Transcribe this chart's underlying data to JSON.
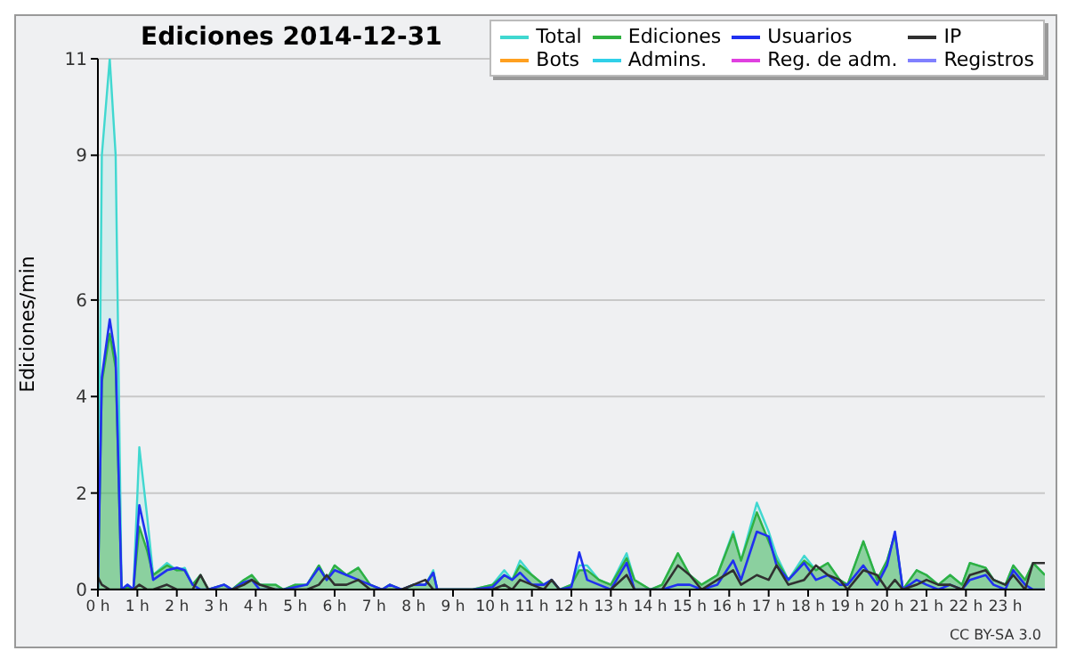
{
  "chart_data": {
    "type": "area",
    "title": "Ediciones  2014-12-31",
    "ylabel": "Ediciones/min",
    "annotations": [
      "CC BY-SA 3.0"
    ],
    "legend": "top right",
    "grid": "y",
    "xlim": [
      0,
      24
    ],
    "xticks": [
      {
        "value": 0,
        "label": "0 h"
      },
      {
        "value": 1,
        "label": "1 h"
      },
      {
        "value": 2,
        "label": "2 h"
      },
      {
        "value": 3,
        "label": "3 h"
      },
      {
        "value": 4,
        "label": "4 h"
      },
      {
        "value": 5,
        "label": "5 h"
      },
      {
        "value": 6,
        "label": "6 h"
      },
      {
        "value": 7,
        "label": "7 h"
      },
      {
        "value": 8,
        "label": "8 h"
      },
      {
        "value": 9,
        "label": "9 h"
      },
      {
        "value": 10,
        "label": "10 h"
      },
      {
        "value": 11,
        "label": "11 h"
      },
      {
        "value": 12,
        "label": "12 h"
      },
      {
        "value": 13,
        "label": "13 h"
      },
      {
        "value": 14,
        "label": "14 h"
      },
      {
        "value": 15,
        "label": "15 h"
      },
      {
        "value": 16,
        "label": "16 h"
      },
      {
        "value": 17,
        "label": "17 h"
      },
      {
        "value": 18,
        "label": "18 h"
      },
      {
        "value": 19,
        "label": "19 h"
      },
      {
        "value": 20,
        "label": "20 h"
      },
      {
        "value": 21,
        "label": "21 h"
      },
      {
        "value": 22,
        "label": "22 h"
      },
      {
        "value": 23,
        "label": "23 h"
      }
    ],
    "ylim": [
      0,
      11
    ],
    "yticks": [
      0,
      2,
      4,
      6,
      9,
      11
    ],
    "x": [
      0,
      0.1,
      0.3,
      0.45,
      0.6,
      0.75,
      0.9,
      1.05,
      1.25,
      1.4,
      1.75,
      2.0,
      2.2,
      2.4,
      2.6,
      2.8,
      3.2,
      3.4,
      3.7,
      3.9,
      4.1,
      4.5,
      4.7,
      5.0,
      5.3,
      5.6,
      5.8,
      6.0,
      6.3,
      6.6,
      6.9,
      7.2,
      7.4,
      7.7,
      8.0,
      8.3,
      8.5,
      8.6,
      9.5,
      10.0,
      10.3,
      10.5,
      10.7,
      11.0,
      11.3,
      11.5,
      11.7,
      12.0,
      12.2,
      12.4,
      12.7,
      13.0,
      13.4,
      13.6,
      14.0,
      14.3,
      14.7,
      15.0,
      15.3,
      15.7,
      16.1,
      16.3,
      16.7,
      17.0,
      17.2,
      17.5,
      17.9,
      18.2,
      18.5,
      18.8,
      19.0,
      19.4,
      19.75,
      20.0,
      20.2,
      20.4,
      20.75,
      21.0,
      21.3,
      21.6,
      21.9,
      22.1,
      22.5,
      22.7,
      23.0,
      23.2,
      23.5,
      23.7,
      24.0
    ],
    "series": [
      {
        "name": "Total",
        "color": "#40d8d0",
        "values": [
          0,
          9.0,
          11,
          9.0,
          0,
          0.1,
          0,
          2.95,
          1.5,
          0.3,
          0.55,
          0.4,
          0.45,
          0.1,
          0.3,
          0,
          0.1,
          0,
          0.2,
          0.3,
          0.1,
          0.1,
          0,
          0.1,
          0.1,
          0.5,
          0.2,
          0.5,
          0.3,
          0.45,
          0.1,
          0,
          0.1,
          0,
          0.1,
          0.1,
          0.4,
          0,
          0,
          0.1,
          0.4,
          0.2,
          0.6,
          0.3,
          0.1,
          0.2,
          0,
          0.1,
          0.5,
          0.5,
          0.2,
          0.1,
          0.75,
          0.2,
          0,
          0.1,
          0.75,
          0.3,
          0.1,
          0.3,
          1.2,
          0.6,
          1.8,
          1.2,
          0.7,
          0.2,
          0.7,
          0.4,
          0.55,
          0.2,
          0.1,
          1.0,
          0.2,
          0.6,
          1.15,
          0,
          0.4,
          0.3,
          0.1,
          0.3,
          0.1,
          0.55,
          0.45,
          0.2,
          0.1,
          0.5,
          0.2,
          0.55,
          0.3
        ]
      },
      {
        "name": "Ediciones",
        "color": "#30b040",
        "values": [
          0,
          4.3,
          5.3,
          4.6,
          0,
          0.05,
          0,
          1.3,
          0.8,
          0.3,
          0.5,
          0.4,
          0.4,
          0.1,
          0.3,
          0,
          0.1,
          0,
          0.2,
          0.3,
          0.1,
          0.1,
          0,
          0.1,
          0.1,
          0.5,
          0.2,
          0.5,
          0.3,
          0.45,
          0.1,
          0,
          0.1,
          0,
          0.1,
          0.1,
          0.35,
          0,
          0,
          0.1,
          0.3,
          0.2,
          0.5,
          0.3,
          0.1,
          0.2,
          0,
          0.1,
          0.4,
          0.4,
          0.2,
          0.1,
          0.65,
          0.2,
          0,
          0.1,
          0.75,
          0.3,
          0.1,
          0.3,
          1.15,
          0.6,
          1.6,
          1.0,
          0.6,
          0.2,
          0.6,
          0.4,
          0.55,
          0.2,
          0.1,
          1.0,
          0.2,
          0.6,
          1.15,
          0,
          0.4,
          0.3,
          0.1,
          0.3,
          0.1,
          0.55,
          0.45,
          0.2,
          0.1,
          0.5,
          0.2,
          0.55,
          0.3
        ]
      },
      {
        "name": "Usuarios",
        "type": "line",
        "color": "#2030f0",
        "values": [
          0,
          4.4,
          5.6,
          4.8,
          0,
          0.1,
          0,
          1.75,
          1.0,
          0.2,
          0.4,
          0.45,
          0.4,
          0.1,
          0,
          0,
          0.1,
          0,
          0.15,
          0.2,
          0,
          0,
          0,
          0.05,
          0.1,
          0.45,
          0.2,
          0.4,
          0.3,
          0.2,
          0.1,
          0,
          0.1,
          0,
          0.1,
          0.1,
          0.35,
          0,
          0,
          0.05,
          0.3,
          0.2,
          0.35,
          0.1,
          0.1,
          0.2,
          0,
          0.05,
          0.77,
          0.2,
          0.1,
          0,
          0.55,
          0,
          0,
          0,
          0.1,
          0.1,
          0,
          0.1,
          0.6,
          0.2,
          1.2,
          1.1,
          0.5,
          0.2,
          0.55,
          0.2,
          0.3,
          0.1,
          0.1,
          0.5,
          0.1,
          0.5,
          1.2,
          0,
          0.2,
          0.1,
          0,
          0.1,
          0,
          0.2,
          0.3,
          0.1,
          0,
          0.4,
          0.1,
          0,
          0
        ]
      },
      {
        "name": "IP",
        "type": "line",
        "color": "#303030",
        "values": [
          0.25,
          0.1,
          0,
          0,
          0,
          0,
          0,
          0.1,
          0,
          0,
          0.1,
          0,
          0,
          0,
          0.3,
          0,
          0,
          0,
          0.1,
          0.2,
          0.1,
          0,
          0,
          0,
          0,
          0.1,
          0.3,
          0.1,
          0.1,
          0.2,
          0,
          0,
          0,
          0,
          0.1,
          0.2,
          0,
          0,
          0,
          0,
          0.1,
          0,
          0.2,
          0.1,
          0,
          0.2,
          0,
          0,
          0,
          0,
          0,
          0,
          0.3,
          0,
          0,
          0,
          0.5,
          0.3,
          0,
          0.2,
          0.4,
          0.1,
          0.3,
          0.2,
          0.5,
          0.1,
          0.2,
          0.5,
          0.3,
          0.2,
          0,
          0.4,
          0.3,
          0,
          0.2,
          0,
          0.1,
          0.2,
          0.1,
          0.1,
          0,
          0.3,
          0.4,
          0.2,
          0.1,
          0.3,
          0,
          0.55,
          0.55
        ]
      },
      {
        "name": "Bots",
        "type": "line",
        "color": "#ffa020",
        "values": [
          null,
          null,
          null,
          null,
          null,
          null,
          null,
          null,
          null,
          null,
          null,
          null,
          null,
          null,
          null,
          null,
          null,
          null,
          null,
          null,
          null,
          null,
          null,
          null,
          null,
          null,
          null,
          null,
          null,
          null,
          null,
          null,
          null,
          null,
          null,
          null,
          null,
          null,
          null,
          null,
          null,
          null,
          null,
          null,
          null,
          null,
          null,
          null,
          null,
          null,
          null,
          null,
          null,
          null,
          null,
          null,
          null,
          null,
          null,
          null,
          null,
          null,
          null,
          null,
          null,
          null,
          null,
          null,
          null,
          null,
          null,
          null,
          null,
          null,
          null,
          null,
          null,
          null,
          null,
          null,
          null,
          null,
          null,
          null,
          null,
          null,
          null,
          null,
          null
        ]
      },
      {
        "name": "Admins.",
        "type": "line",
        "color": "#30d0e8",
        "values": [
          null,
          null,
          null,
          null,
          null,
          null,
          null,
          null,
          null,
          null,
          null,
          null,
          null,
          null,
          null,
          null,
          null,
          null,
          null,
          null,
          null,
          null,
          null,
          null,
          null,
          null,
          null,
          null,
          null,
          null,
          null,
          null,
          null,
          null,
          null,
          null,
          null,
          null,
          null,
          null,
          null,
          null,
          null,
          null,
          null,
          null,
          null,
          null,
          null,
          null,
          null,
          null,
          null,
          null,
          null,
          null,
          null,
          null,
          null,
          null,
          null,
          null,
          null,
          null,
          null,
          null,
          null,
          null,
          null,
          null,
          null,
          null,
          null,
          null,
          null,
          null,
          null,
          null,
          null,
          null,
          null,
          null,
          null,
          null,
          null,
          null,
          null,
          null,
          null
        ]
      },
      {
        "name": "Reg. de adm.",
        "type": "line",
        "color": "#e040e0",
        "values": [
          null,
          null,
          null,
          null,
          null,
          null,
          null,
          null,
          null,
          null,
          null,
          null,
          null,
          null,
          null,
          null,
          null,
          null,
          null,
          null,
          null,
          null,
          null,
          null,
          null,
          null,
          null,
          null,
          null,
          null,
          null,
          null,
          null,
          null,
          null,
          null,
          null,
          null,
          null,
          null,
          null,
          null,
          null,
          null,
          null,
          null,
          null,
          null,
          null,
          null,
          null,
          null,
          null,
          null,
          null,
          null,
          null,
          null,
          null,
          null,
          null,
          null,
          null,
          null,
          null,
          null,
          null,
          null,
          null,
          null,
          null,
          null,
          null,
          null,
          null,
          null,
          null,
          null,
          null,
          null,
          null,
          null,
          null,
          null,
          null,
          null,
          null,
          null,
          null
        ]
      },
      {
        "name": "Registros",
        "type": "line",
        "color": "#8080ff",
        "values": [
          null,
          null,
          null,
          null,
          null,
          null,
          null,
          null,
          null,
          null,
          null,
          null,
          null,
          null,
          null,
          null,
          null,
          null,
          null,
          null,
          null,
          null,
          null,
          null,
          null,
          null,
          null,
          null,
          null,
          null,
          null,
          null,
          null,
          null,
          null,
          null,
          null,
          null,
          null,
          null,
          null,
          null,
          null,
          null,
          null,
          null,
          null,
          null,
          null,
          null,
          null,
          null,
          null,
          null,
          null,
          null,
          null,
          null,
          null,
          null,
          null,
          null,
          null,
          null,
          null,
          null,
          null,
          null,
          null,
          null,
          null,
          null,
          null,
          null,
          null,
          null,
          null,
          null,
          null,
          null,
          null,
          null,
          null,
          null,
          null,
          null,
          null,
          null,
          null
        ]
      }
    ]
  }
}
